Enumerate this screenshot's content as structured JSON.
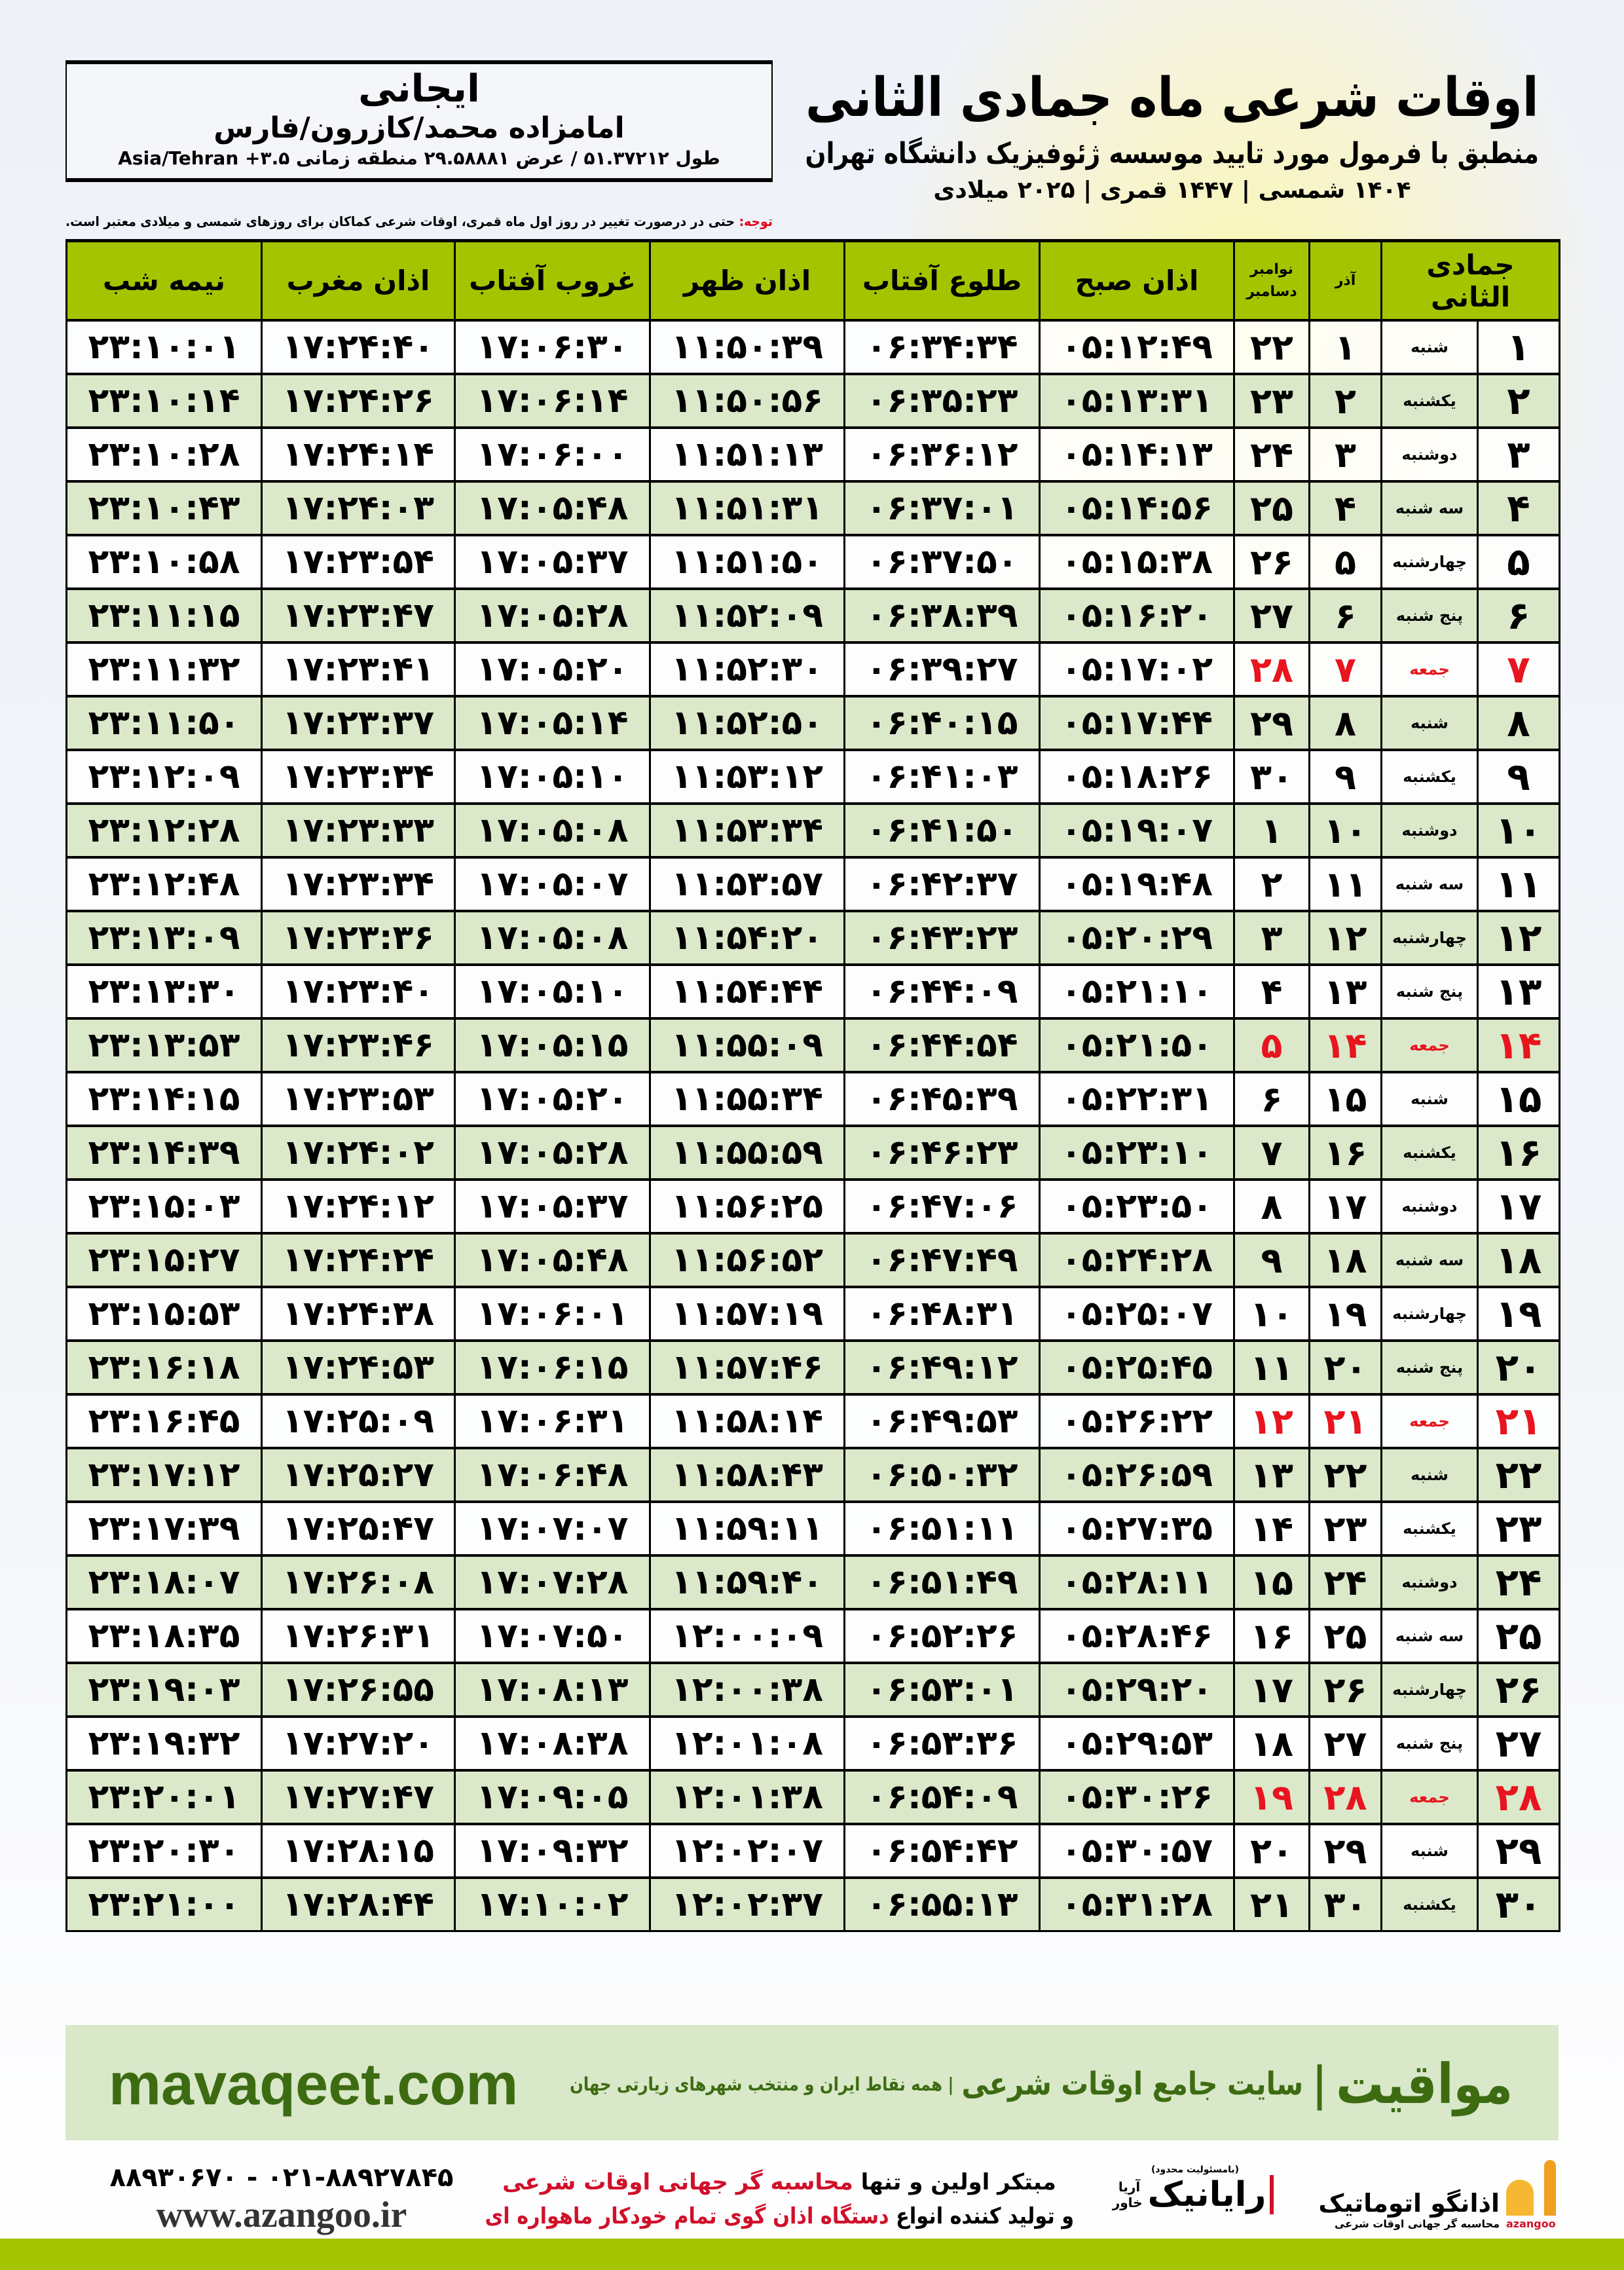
{
  "info_box": {
    "city": "ایجانی",
    "place": "امامزاده محمد/کازرون/فارس",
    "coords": "طول ۵۱.۳۷۲۱۲ / عرض ۲۹.۵۸۸۸۱ منطقه زمانی ۳.۵+ Asia/Tehran"
  },
  "title": {
    "main": "اوقات شرعی ماه جمادی الثانی",
    "subtitle": "منطبق با فرمول مورد تایید موسسه ژئوفیزیک دانشگاه تهران",
    "years": "۱۴۰۴ شمسی | ۱۴۴۷ قمری | ۲۰۲۵ میلادی"
  },
  "note": {
    "label": "توجه:",
    "text": " حتی در درصورت تغییر در روز اول ماه قمری، اوقات شرعی کماکان برای روزهای شمسی و میلادی معتبر است."
  },
  "table": {
    "headers": {
      "hijri": "جمادی الثانی",
      "azar": "آذر",
      "greg_top": "نوامبر",
      "greg_bottom": "دسامبر",
      "fajr": "اذان صبح",
      "sunrise": "طلوع آفتاب",
      "dhuhr": "اذان ظهر",
      "sunset": "غروب آفتاب",
      "maghrib": "اذان مغرب",
      "midnight": "نیمه شب"
    },
    "friday_color": "#e8141e",
    "rows": [
      [
        "۱",
        "شنبه",
        "۱",
        "۲۲",
        "۰۵:۱۲:۴۹",
        "۰۶:۳۴:۳۴",
        "۱۱:۵۰:۳۹",
        "۱۷:۰۶:۳۰",
        "۱۷:۲۴:۴۰",
        "۲۳:۱۰:۰۱"
      ],
      [
        "۲",
        "یکشنبه",
        "۲",
        "۲۳",
        "۰۵:۱۳:۳۱",
        "۰۶:۳۵:۲۳",
        "۱۱:۵۰:۵۶",
        "۱۷:۰۶:۱۴",
        "۱۷:۲۴:۲۶",
        "۲۳:۱۰:۱۴"
      ],
      [
        "۳",
        "دوشنبه",
        "۳",
        "۲۴",
        "۰۵:۱۴:۱۳",
        "۰۶:۳۶:۱۲",
        "۱۱:۵۱:۱۳",
        "۱۷:۰۶:۰۰",
        "۱۷:۲۴:۱۴",
        "۲۳:۱۰:۲۸"
      ],
      [
        "۴",
        "سه شنبه",
        "۴",
        "۲۵",
        "۰۵:۱۴:۵۶",
        "۰۶:۳۷:۰۱",
        "۱۱:۵۱:۳۱",
        "۱۷:۰۵:۴۸",
        "۱۷:۲۴:۰۳",
        "۲۳:۱۰:۴۳"
      ],
      [
        "۵",
        "چهارشنبه",
        "۵",
        "۲۶",
        "۰۵:۱۵:۳۸",
        "۰۶:۳۷:۵۰",
        "۱۱:۵۱:۵۰",
        "۱۷:۰۵:۳۷",
        "۱۷:۲۳:۵۴",
        "۲۳:۱۰:۵۸"
      ],
      [
        "۶",
        "پنج شنبه",
        "۶",
        "۲۷",
        "۰۵:۱۶:۲۰",
        "۰۶:۳۸:۳۹",
        "۱۱:۵۲:۰۹",
        "۱۷:۰۵:۲۸",
        "۱۷:۲۳:۴۷",
        "۲۳:۱۱:۱۵"
      ],
      [
        "۷",
        "جمعه",
        "۷",
        "۲۸",
        "۰۵:۱۷:۰۲",
        "۰۶:۳۹:۲۷",
        "۱۱:۵۲:۳۰",
        "۱۷:۰۵:۲۰",
        "۱۷:۲۳:۴۱",
        "۲۳:۱۱:۳۲"
      ],
      [
        "۸",
        "شنبه",
        "۸",
        "۲۹",
        "۰۵:۱۷:۴۴",
        "۰۶:۴۰:۱۵",
        "۱۱:۵۲:۵۰",
        "۱۷:۰۵:۱۴",
        "۱۷:۲۳:۳۷",
        "۲۳:۱۱:۵۰"
      ],
      [
        "۹",
        "یکشنبه",
        "۹",
        "۳۰",
        "۰۵:۱۸:۲۶",
        "۰۶:۴۱:۰۳",
        "۱۱:۵۳:۱۲",
        "۱۷:۰۵:۱۰",
        "۱۷:۲۳:۳۴",
        "۲۳:۱۲:۰۹"
      ],
      [
        "۱۰",
        "دوشنبه",
        "۱۰",
        "۱",
        "۰۵:۱۹:۰۷",
        "۰۶:۴۱:۵۰",
        "۱۱:۵۳:۳۴",
        "۱۷:۰۵:۰۸",
        "۱۷:۲۳:۳۳",
        "۲۳:۱۲:۲۸"
      ],
      [
        "۱۱",
        "سه شنبه",
        "۱۱",
        "۲",
        "۰۵:۱۹:۴۸",
        "۰۶:۴۲:۳۷",
        "۱۱:۵۳:۵۷",
        "۱۷:۰۵:۰۷",
        "۱۷:۲۳:۳۴",
        "۲۳:۱۲:۴۸"
      ],
      [
        "۱۲",
        "چهارشنبه",
        "۱۲",
        "۳",
        "۰۵:۲۰:۲۹",
        "۰۶:۴۳:۲۳",
        "۱۱:۵۴:۲۰",
        "۱۷:۰۵:۰۸",
        "۱۷:۲۳:۳۶",
        "۲۳:۱۳:۰۹"
      ],
      [
        "۱۳",
        "پنج شنبه",
        "۱۳",
        "۴",
        "۰۵:۲۱:۱۰",
        "۰۶:۴۴:۰۹",
        "۱۱:۵۴:۴۴",
        "۱۷:۰۵:۱۰",
        "۱۷:۲۳:۴۰",
        "۲۳:۱۳:۳۰"
      ],
      [
        "۱۴",
        "جمعه",
        "۱۴",
        "۵",
        "۰۵:۲۱:۵۰",
        "۰۶:۴۴:۵۴",
        "۱۱:۵۵:۰۹",
        "۱۷:۰۵:۱۵",
        "۱۷:۲۳:۴۶",
        "۲۳:۱۳:۵۳"
      ],
      [
        "۱۵",
        "شنبه",
        "۱۵",
        "۶",
        "۰۵:۲۲:۳۱",
        "۰۶:۴۵:۳۹",
        "۱۱:۵۵:۳۴",
        "۱۷:۰۵:۲۰",
        "۱۷:۲۳:۵۳",
        "۲۳:۱۴:۱۵"
      ],
      [
        "۱۶",
        "یکشنبه",
        "۱۶",
        "۷",
        "۰۵:۲۳:۱۰",
        "۰۶:۴۶:۲۳",
        "۱۱:۵۵:۵۹",
        "۱۷:۰۵:۲۸",
        "۱۷:۲۴:۰۲",
        "۲۳:۱۴:۳۹"
      ],
      [
        "۱۷",
        "دوشنبه",
        "۱۷",
        "۸",
        "۰۵:۲۳:۵۰",
        "۰۶:۴۷:۰۶",
        "۱۱:۵۶:۲۵",
        "۱۷:۰۵:۳۷",
        "۱۷:۲۴:۱۲",
        "۲۳:۱۵:۰۳"
      ],
      [
        "۱۸",
        "سه شنبه",
        "۱۸",
        "۹",
        "۰۵:۲۴:۲۸",
        "۰۶:۴۷:۴۹",
        "۱۱:۵۶:۵۲",
        "۱۷:۰۵:۴۸",
        "۱۷:۲۴:۲۴",
        "۲۳:۱۵:۲۷"
      ],
      [
        "۱۹",
        "چهارشنبه",
        "۱۹",
        "۱۰",
        "۰۵:۲۵:۰۷",
        "۰۶:۴۸:۳۱",
        "۱۱:۵۷:۱۹",
        "۱۷:۰۶:۰۱",
        "۱۷:۲۴:۳۸",
        "۲۳:۱۵:۵۳"
      ],
      [
        "۲۰",
        "پنج شنبه",
        "۲۰",
        "۱۱",
        "۰۵:۲۵:۴۵",
        "۰۶:۴۹:۱۲",
        "۱۱:۵۷:۴۶",
        "۱۷:۰۶:۱۵",
        "۱۷:۲۴:۵۳",
        "۲۳:۱۶:۱۸"
      ],
      [
        "۲۱",
        "جمعه",
        "۲۱",
        "۱۲",
        "۰۵:۲۶:۲۲",
        "۰۶:۴۹:۵۳",
        "۱۱:۵۸:۱۴",
        "۱۷:۰۶:۳۱",
        "۱۷:۲۵:۰۹",
        "۲۳:۱۶:۴۵"
      ],
      [
        "۲۲",
        "شنبه",
        "۲۲",
        "۱۳",
        "۰۵:۲۶:۵۹",
        "۰۶:۵۰:۳۲",
        "۱۱:۵۸:۴۳",
        "۱۷:۰۶:۴۸",
        "۱۷:۲۵:۲۷",
        "۲۳:۱۷:۱۲"
      ],
      [
        "۲۳",
        "یکشنبه",
        "۲۳",
        "۱۴",
        "۰۵:۲۷:۳۵",
        "۰۶:۵۱:۱۱",
        "۱۱:۵۹:۱۱",
        "۱۷:۰۷:۰۷",
        "۱۷:۲۵:۴۷",
        "۲۳:۱۷:۳۹"
      ],
      [
        "۲۴",
        "دوشنبه",
        "۲۴",
        "۱۵",
        "۰۵:۲۸:۱۱",
        "۰۶:۵۱:۴۹",
        "۱۱:۵۹:۴۰",
        "۱۷:۰۷:۲۸",
        "۱۷:۲۶:۰۸",
        "۲۳:۱۸:۰۷"
      ],
      [
        "۲۵",
        "سه شنبه",
        "۲۵",
        "۱۶",
        "۰۵:۲۸:۴۶",
        "۰۶:۵۲:۲۶",
        "۱۲:۰۰:۰۹",
        "۱۷:۰۷:۵۰",
        "۱۷:۲۶:۳۱",
        "۲۳:۱۸:۳۵"
      ],
      [
        "۲۶",
        "چهارشنبه",
        "۲۶",
        "۱۷",
        "۰۵:۲۹:۲۰",
        "۰۶:۵۳:۰۱",
        "۱۲:۰۰:۳۸",
        "۱۷:۰۸:۱۳",
        "۱۷:۲۶:۵۵",
        "۲۳:۱۹:۰۳"
      ],
      [
        "۲۷",
        "پنج شنبه",
        "۲۷",
        "۱۸",
        "۰۵:۲۹:۵۳",
        "۰۶:۵۳:۳۶",
        "۱۲:۰۱:۰۸",
        "۱۷:۰۸:۳۸",
        "۱۷:۲۷:۲۰",
        "۲۳:۱۹:۳۲"
      ],
      [
        "۲۸",
        "جمعه",
        "۲۸",
        "۱۹",
        "۰۵:۳۰:۲۶",
        "۰۶:۵۴:۰۹",
        "۱۲:۰۱:۳۸",
        "۱۷:۰۹:۰۵",
        "۱۷:۲۷:۴۷",
        "۲۳:۲۰:۰۱"
      ],
      [
        "۲۹",
        "شنبه",
        "۲۹",
        "۲۰",
        "۰۵:۳۰:۵۷",
        "۰۶:۵۴:۴۲",
        "۱۲:۰۲:۰۷",
        "۱۷:۰۹:۳۲",
        "۱۷:۲۸:۱۵",
        "۲۳:۲۰:۳۰"
      ],
      [
        "۳۰",
        "یکشنبه",
        "۳۰",
        "۲۱",
        "۰۵:۳۱:۲۸",
        "۰۶:۵۵:۱۳",
        "۱۲:۰۲:۳۷",
        "۱۷:۱۰:۰۲",
        "۱۷:۲۸:۴۴",
        "۲۳:۲۱:۰۰"
      ]
    ]
  },
  "footer": {
    "brand": "مواقیت",
    "separator": "|",
    "tagline": "سایت جامع اوقات شرعی",
    "tagline_sub": "| همه نقاط ایران و منتخب شهرهای زیارتی جهان",
    "site": "mavaqeet.com",
    "phone": "۰۲۱-۸۸۹۲۷۸۴۵ - ۸۸۹۳۰۶۷۰",
    "web": "www.azangoo.ir",
    "slogan1_a": "مبتکر اولین و تنها ",
    "slogan1_b": "محاسبه گر جهانی اوقات شرعی",
    "slogan2_a": "و تولید کننده انواع ",
    "slogan2_b": "دستگاه اذان گوی تمام خودکار ماهواره ای",
    "rayanik_note": "(بامسئولیت محدود)",
    "rayanik": "رایانیک",
    "rayanik_sub": "آریا خاور",
    "azangoo_name": "اذانگو اتوماتیک",
    "azangoo_sub": "محاسبه گر جهانی اوقات شرعی",
    "azangoo_latin": "azangoo",
    "accent_green": "#a5c400",
    "brand_green": "#3d6b12"
  }
}
